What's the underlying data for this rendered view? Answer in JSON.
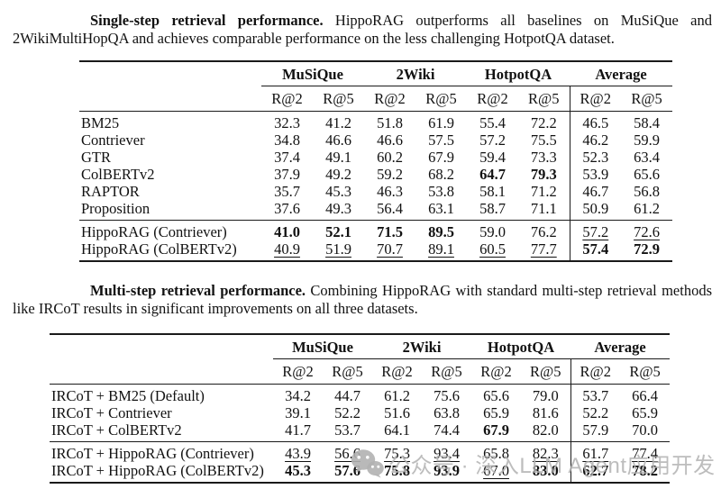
{
  "captions": [
    {
      "bold": "Single-step retrieval performance.",
      "rest": " HippoRAG outperforms all baselines on MuSiQue and 2WikiMultiHopQA and achieves comparable performance on the less challenging HotpotQA dataset."
    },
    {
      "bold": "Multi-step retrieval performance.",
      "rest": " Combining HippoRAG with standard multi-step retrieval methods like IRCoT results in significant improvements on all three datasets."
    }
  ],
  "tables": [
    {
      "name": "single-step-retrieval-table",
      "groups": [
        "MuSiQue",
        "2Wiki",
        "HotpotQA",
        "Average"
      ],
      "metric_headers": [
        "R@2",
        "R@5",
        "R@2",
        "R@5",
        "R@2",
        "R@5",
        "R@2",
        "R@5"
      ],
      "sections": [
        {
          "rows": [
            {
              "label": "BM25",
              "cells": [
                {
                  "v": "32.3"
                },
                {
                  "v": "41.2"
                },
                {
                  "v": "51.8"
                },
                {
                  "v": "61.9"
                },
                {
                  "v": "55.4"
                },
                {
                  "v": "72.2"
                },
                {
                  "v": "46.5"
                },
                {
                  "v": "58.4"
                }
              ]
            },
            {
              "label": "Contriever",
              "cells": [
                {
                  "v": "34.8"
                },
                {
                  "v": "46.6"
                },
                {
                  "v": "46.6"
                },
                {
                  "v": "57.5"
                },
                {
                  "v": "57.2"
                },
                {
                  "v": "75.5"
                },
                {
                  "v": "46.2"
                },
                {
                  "v": "59.9"
                }
              ]
            },
            {
              "label": "GTR",
              "cells": [
                {
                  "v": "37.4"
                },
                {
                  "v": "49.1"
                },
                {
                  "v": "60.2"
                },
                {
                  "v": "67.9"
                },
                {
                  "v": "59.4"
                },
                {
                  "v": "73.3"
                },
                {
                  "v": "52.3"
                },
                {
                  "v": "63.4"
                }
              ]
            },
            {
              "label": "ColBERTv2",
              "cells": [
                {
                  "v": "37.9"
                },
                {
                  "v": "49.2"
                },
                {
                  "v": "59.2"
                },
                {
                  "v": "68.2"
                },
                {
                  "v": "64.7",
                  "f": "b"
                },
                {
                  "v": "79.3",
                  "f": "b"
                },
                {
                  "v": "53.9"
                },
                {
                  "v": "65.6"
                }
              ]
            },
            {
              "label": "RAPTOR",
              "cells": [
                {
                  "v": "35.7"
                },
                {
                  "v": "45.3"
                },
                {
                  "v": "46.3"
                },
                {
                  "v": "53.8"
                },
                {
                  "v": "58.1"
                },
                {
                  "v": "71.2"
                },
                {
                  "v": "46.7"
                },
                {
                  "v": "56.8"
                }
              ]
            },
            {
              "label": "Proposition",
              "cells": [
                {
                  "v": "37.6"
                },
                {
                  "v": "49.3"
                },
                {
                  "v": "56.4"
                },
                {
                  "v": "63.1"
                },
                {
                  "v": "58.7"
                },
                {
                  "v": "71.1"
                },
                {
                  "v": "50.9"
                },
                {
                  "v": "61.2"
                }
              ]
            }
          ]
        },
        {
          "rows": [
            {
              "label": "HippoRAG (Contriever)",
              "cells": [
                {
                  "v": "41.0",
                  "f": "b"
                },
                {
                  "v": "52.1",
                  "f": "b"
                },
                {
                  "v": "71.5",
                  "f": "b"
                },
                {
                  "v": "89.5",
                  "f": "b"
                },
                {
                  "v": "59.0"
                },
                {
                  "v": "76.2"
                },
                {
                  "v": "57.2",
                  "f": "u"
                },
                {
                  "v": "72.6",
                  "f": "u"
                }
              ]
            },
            {
              "label": "HippoRAG (ColBERTv2)",
              "cells": [
                {
                  "v": "40.9",
                  "f": "u"
                },
                {
                  "v": "51.9",
                  "f": "u"
                },
                {
                  "v": "70.7",
                  "f": "u"
                },
                {
                  "v": "89.1",
                  "f": "u"
                },
                {
                  "v": "60.5",
                  "f": "u"
                },
                {
                  "v": "77.7",
                  "f": "u"
                },
                {
                  "v": "57.4",
                  "f": "b"
                },
                {
                  "v": "72.9",
                  "f": "b"
                }
              ]
            }
          ]
        }
      ]
    },
    {
      "name": "multi-step-retrieval-table",
      "groups": [
        "MuSiQue",
        "2Wiki",
        "HotpotQA",
        "Average"
      ],
      "metric_headers": [
        "R@2",
        "R@5",
        "R@2",
        "R@5",
        "R@2",
        "R@5",
        "R@2",
        "R@5"
      ],
      "sections": [
        {
          "rows": [
            {
              "label": "IRCoT + BM25 (Default)",
              "cells": [
                {
                  "v": "34.2"
                },
                {
                  "v": "44.7"
                },
                {
                  "v": "61.2"
                },
                {
                  "v": "75.6"
                },
                {
                  "v": "65.6"
                },
                {
                  "v": "79.0"
                },
                {
                  "v": "53.7"
                },
                {
                  "v": "66.4"
                }
              ]
            },
            {
              "label": "IRCoT + Contriever",
              "cells": [
                {
                  "v": "39.1"
                },
                {
                  "v": "52.2"
                },
                {
                  "v": "51.6"
                },
                {
                  "v": "63.8"
                },
                {
                  "v": "65.9"
                },
                {
                  "v": "81.6"
                },
                {
                  "v": "52.2"
                },
                {
                  "v": "65.9"
                }
              ]
            },
            {
              "label": "IRCoT + ColBERTv2",
              "cells": [
                {
                  "v": "41.7"
                },
                {
                  "v": "53.7"
                },
                {
                  "v": "64.1"
                },
                {
                  "v": "74.4"
                },
                {
                  "v": "67.9",
                  "f": "b"
                },
                {
                  "v": "82.0"
                },
                {
                  "v": "57.9"
                },
                {
                  "v": "70.0"
                }
              ]
            }
          ]
        },
        {
          "rows": [
            {
              "label": "IRCoT + HippoRAG (Contriever)",
              "cells": [
                {
                  "v": "43.9",
                  "f": "u"
                },
                {
                  "v": "56.6",
                  "f": "u"
                },
                {
                  "v": "75.3",
                  "f": "u"
                },
                {
                  "v": "93.4",
                  "f": "u"
                },
                {
                  "v": "65.8"
                },
                {
                  "v": "82.3",
                  "f": "u"
                },
                {
                  "v": "61.7",
                  "f": "u"
                },
                {
                  "v": "77.4",
                  "f": "u"
                }
              ]
            },
            {
              "label": "IRCoT + HippoRAG (ColBERTv2)",
              "cells": [
                {
                  "v": "45.3",
                  "f": "b"
                },
                {
                  "v": "57.6",
                  "f": "b"
                },
                {
                  "v": "75.8",
                  "f": "b"
                },
                {
                  "v": "93.9",
                  "f": "b"
                },
                {
                  "v": "67.0",
                  "f": "u"
                },
                {
                  "v": "83.0",
                  "f": "b"
                },
                {
                  "v": "62.7",
                  "f": "b"
                },
                {
                  "v": "78.2",
                  "f": "b"
                }
              ]
            }
          ]
        }
      ]
    }
  ],
  "watermark": {
    "icon": "wechat-icon",
    "text": "公众号 · 深入LLM Agent应用开发",
    "color": "#b1b1b1"
  }
}
